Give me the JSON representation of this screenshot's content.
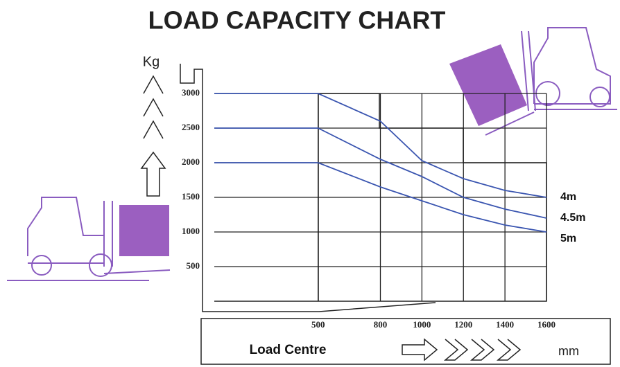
{
  "chart_data": {
    "type": "line",
    "title": "LOAD CAPACITY CHART",
    "y_label": "Kg",
    "x_label": "Load Centre",
    "x_unit": "mm",
    "x": [
      0,
      500,
      800,
      1000,
      1200,
      1400,
      1600
    ],
    "series": [
      {
        "name": "4m",
        "color": "#3a55b0",
        "values": [
          3000,
          3000,
          2600,
          2030,
          1770,
          1600,
          1500
        ]
      },
      {
        "name": "4.5m",
        "color": "#3a55b0",
        "values": [
          2500,
          2500,
          2050,
          1800,
          1500,
          1330,
          1200
        ]
      },
      {
        "name": "5m",
        "color": "#3a55b0",
        "values": [
          2000,
          2000,
          1650,
          1450,
          1250,
          1100,
          1000
        ]
      }
    ],
    "xlim": [
      0,
      1600
    ],
    "ylim": [
      0,
      3000
    ],
    "xticks": [
      500,
      800,
      1000,
      1200,
      1400,
      1600
    ],
    "yticks": [
      500,
      1000,
      1500,
      2000,
      2500,
      3000
    ],
    "grid": true
  }
}
